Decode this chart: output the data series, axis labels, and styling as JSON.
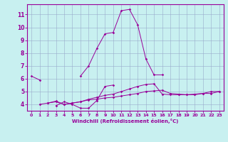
{
  "xlabel": "Windchill (Refroidissement éolien,°C)",
  "bg_color": "#c8f0f0",
  "line_color": "#990099",
  "grid_color": "#99aacc",
  "xlim": [
    -0.5,
    23.5
  ],
  "ylim": [
    3.5,
    11.8
  ],
  "xticks": [
    0,
    1,
    2,
    3,
    4,
    5,
    6,
    7,
    8,
    9,
    10,
    11,
    12,
    13,
    14,
    15,
    16,
    17,
    18,
    19,
    20,
    21,
    22,
    23
  ],
  "yticks": [
    4,
    5,
    6,
    7,
    8,
    9,
    10,
    11
  ],
  "series2": [
    {
      "x": [
        0,
        1
      ],
      "y": [
        6.2,
        5.9
      ]
    },
    {
      "x": [
        3,
        4,
        5,
        6,
        7,
        8,
        9,
        10
      ],
      "y": [
        3.9,
        4.2,
        4.0,
        3.7,
        3.7,
        4.3,
        5.4,
        5.5
      ]
    },
    {
      "x": [
        1,
        2,
        3,
        4,
        5,
        6,
        7,
        8,
        9,
        10,
        11,
        12,
        13,
        14,
        15,
        16,
        17,
        18,
        19,
        20,
        21,
        22,
        23
      ],
      "y": [
        4.0,
        4.1,
        4.2,
        4.0,
        4.1,
        4.2,
        4.35,
        4.4,
        4.5,
        4.55,
        4.65,
        4.75,
        4.85,
        5.0,
        5.05,
        5.1,
        4.85,
        4.8,
        4.75,
        4.75,
        4.85,
        4.85,
        5.0
      ]
    },
    {
      "x": [
        2,
        3,
        4,
        5,
        6,
        7,
        8,
        9,
        10,
        11,
        12,
        13,
        14,
        15,
        16,
        17,
        18,
        19,
        20,
        21,
        22,
        23
      ],
      "y": [
        4.1,
        4.25,
        4.0,
        4.1,
        4.2,
        4.4,
        4.55,
        4.7,
        4.8,
        5.0,
        5.2,
        5.4,
        5.55,
        5.6,
        4.8,
        4.75,
        4.75,
        4.75,
        4.8,
        4.85,
        5.0,
        5.0
      ]
    },
    {
      "x": [
        6,
        7,
        8,
        9,
        10,
        11,
        12,
        13,
        14,
        15,
        16
      ],
      "y": [
        6.2,
        7.0,
        8.35,
        9.5,
        9.6,
        11.3,
        11.4,
        10.2,
        7.55,
        6.3,
        6.3
      ]
    }
  ]
}
